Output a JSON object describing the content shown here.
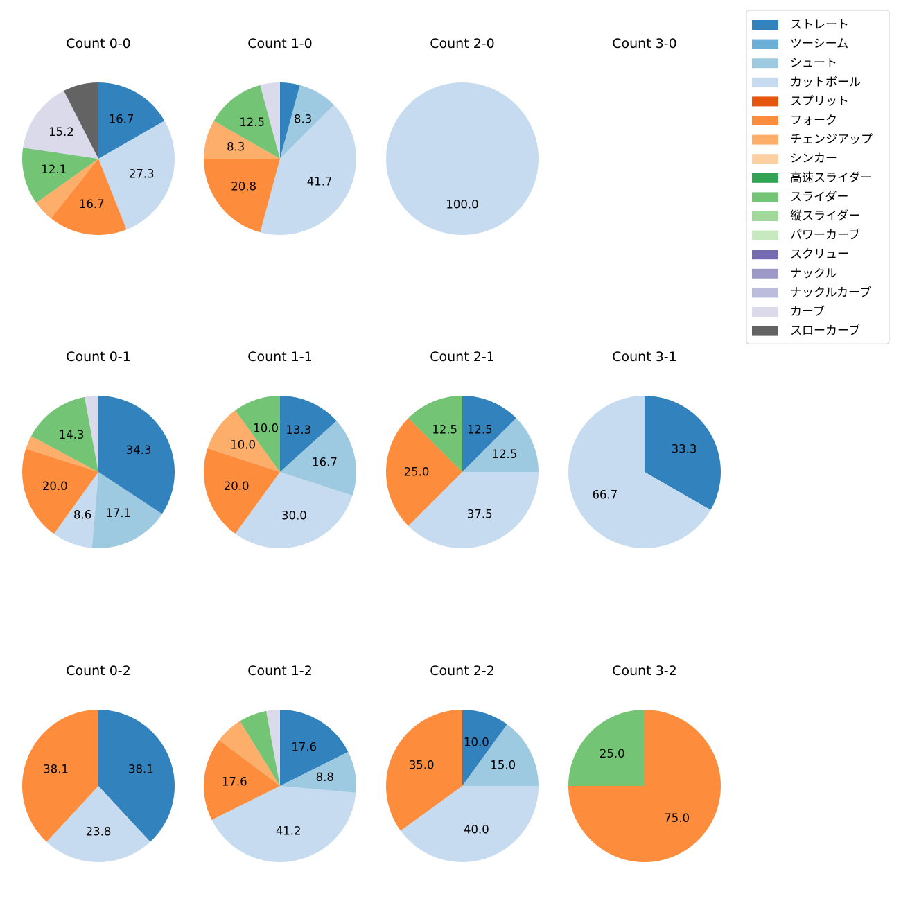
{
  "chart_data": {
    "type": "pie",
    "legend": {
      "placement": "top-right",
      "entries": [
        {
          "label": "ストレート",
          "color": "#3182bd"
        },
        {
          "label": "ツーシーム",
          "color": "#6baed6"
        },
        {
          "label": "シュート",
          "color": "#9ecae1"
        },
        {
          "label": "カットボール",
          "color": "#c6dbef"
        },
        {
          "label": "スプリット",
          "color": "#e6550d"
        },
        {
          "label": "フォーク",
          "color": "#fd8d3c"
        },
        {
          "label": "チェンジアップ",
          "color": "#fdae6b"
        },
        {
          "label": "シンカー",
          "color": "#fdd0a2"
        },
        {
          "label": "高速スライダー",
          "color": "#31a354"
        },
        {
          "label": "スライダー",
          "color": "#74c476"
        },
        {
          "label": "縦スライダー",
          "color": "#a1d99b"
        },
        {
          "label": "パワーカーブ",
          "color": "#c7e9c0"
        },
        {
          "label": "スクリュー",
          "color": "#756bb1"
        },
        {
          "label": "ナックル",
          "color": "#9e9ac8"
        },
        {
          "label": "ナックルカーブ",
          "color": "#bcbddc"
        },
        {
          "label": "カーブ",
          "color": "#dadaeb"
        },
        {
          "label": "スローカーブ",
          "color": "#636363"
        }
      ]
    },
    "pies": [
      {
        "title": "Count 0-0",
        "slices": [
          {
            "pitch": "ストレート",
            "value": 16.7,
            "label": "16.7"
          },
          {
            "pitch": "カットボール",
            "value": 27.3,
            "label": "27.3"
          },
          {
            "pitch": "フォーク",
            "value": 16.7,
            "label": "16.7"
          },
          {
            "pitch": "チェンジアップ",
            "value": 4.5,
            "label": ""
          },
          {
            "pitch": "スライダー",
            "value": 12.1,
            "label": "12.1"
          },
          {
            "pitch": "カーブ",
            "value": 15.2,
            "label": "15.2"
          },
          {
            "pitch": "スローカーブ",
            "value": 7.5,
            "label": ""
          }
        ]
      },
      {
        "title": "Count 1-0",
        "slices": [
          {
            "pitch": "ストレート",
            "value": 4.2,
            "label": ""
          },
          {
            "pitch": "シュート",
            "value": 8.3,
            "label": "8.3"
          },
          {
            "pitch": "カットボール",
            "value": 41.7,
            "label": "41.7"
          },
          {
            "pitch": "フォーク",
            "value": 20.8,
            "label": "20.8"
          },
          {
            "pitch": "チェンジアップ",
            "value": 8.3,
            "label": "8.3"
          },
          {
            "pitch": "スライダー",
            "value": 12.5,
            "label": "12.5"
          },
          {
            "pitch": "カーブ",
            "value": 4.2,
            "label": ""
          }
        ]
      },
      {
        "title": "Count 2-0",
        "slices": [
          {
            "pitch": "カットボール",
            "value": 100.0,
            "label": "100.0"
          }
        ]
      },
      {
        "title": "Count 3-0",
        "slices": []
      },
      {
        "title": "Count 0-1",
        "slices": [
          {
            "pitch": "ストレート",
            "value": 34.3,
            "label": "34.3"
          },
          {
            "pitch": "シュート",
            "value": 17.1,
            "label": "17.1"
          },
          {
            "pitch": "カットボール",
            "value": 8.6,
            "label": "8.6"
          },
          {
            "pitch": "フォーク",
            "value": 20.0,
            "label": "20.0"
          },
          {
            "pitch": "チェンジアップ",
            "value": 2.9,
            "label": ""
          },
          {
            "pitch": "スライダー",
            "value": 14.3,
            "label": "14.3"
          },
          {
            "pitch": "カーブ",
            "value": 2.9,
            "label": ""
          }
        ]
      },
      {
        "title": "Count 1-1",
        "slices": [
          {
            "pitch": "ストレート",
            "value": 13.3,
            "label": "13.3"
          },
          {
            "pitch": "シュート",
            "value": 16.7,
            "label": "16.7"
          },
          {
            "pitch": "カットボール",
            "value": 30.0,
            "label": "30.0"
          },
          {
            "pitch": "フォーク",
            "value": 20.0,
            "label": "20.0"
          },
          {
            "pitch": "チェンジアップ",
            "value": 10.0,
            "label": "10.0"
          },
          {
            "pitch": "スライダー",
            "value": 10.0,
            "label": "10.0"
          }
        ]
      },
      {
        "title": "Count 2-1",
        "slices": [
          {
            "pitch": "ストレート",
            "value": 12.5,
            "label": "12.5"
          },
          {
            "pitch": "シュート",
            "value": 12.5,
            "label": "12.5"
          },
          {
            "pitch": "カットボール",
            "value": 37.5,
            "label": "37.5"
          },
          {
            "pitch": "フォーク",
            "value": 25.0,
            "label": "25.0"
          },
          {
            "pitch": "スライダー",
            "value": 12.5,
            "label": "12.5"
          }
        ]
      },
      {
        "title": "Count 3-1",
        "slices": [
          {
            "pitch": "ストレート",
            "value": 33.3,
            "label": "33.3"
          },
          {
            "pitch": "カットボール",
            "value": 66.7,
            "label": "66.7"
          }
        ]
      },
      {
        "title": "Count 0-2",
        "slices": [
          {
            "pitch": "ストレート",
            "value": 38.1,
            "label": "38.1"
          },
          {
            "pitch": "カットボール",
            "value": 23.8,
            "label": "23.8"
          },
          {
            "pitch": "フォーク",
            "value": 38.1,
            "label": "38.1"
          }
        ]
      },
      {
        "title": "Count 1-2",
        "slices": [
          {
            "pitch": "ストレート",
            "value": 17.6,
            "label": "17.6"
          },
          {
            "pitch": "シュート",
            "value": 8.8,
            "label": "8.8"
          },
          {
            "pitch": "カットボール",
            "value": 41.2,
            "label": "41.2"
          },
          {
            "pitch": "フォーク",
            "value": 17.6,
            "label": "17.6"
          },
          {
            "pitch": "チェンジアップ",
            "value": 5.9,
            "label": ""
          },
          {
            "pitch": "スライダー",
            "value": 5.9,
            "label": ""
          },
          {
            "pitch": "カーブ",
            "value": 2.9,
            "label": ""
          }
        ]
      },
      {
        "title": "Count 2-2",
        "slices": [
          {
            "pitch": "ストレート",
            "value": 10.0,
            "label": "10.0"
          },
          {
            "pitch": "シュート",
            "value": 15.0,
            "label": "15.0"
          },
          {
            "pitch": "カットボール",
            "value": 40.0,
            "label": "40.0"
          },
          {
            "pitch": "フォーク",
            "value": 35.0,
            "label": "35.0"
          }
        ]
      },
      {
        "title": "Count 3-2",
        "slices": [
          {
            "pitch": "フォーク",
            "value": 75.0,
            "label": "75.0"
          },
          {
            "pitch": "スライダー",
            "value": 25.0,
            "label": "25.0"
          }
        ]
      }
    ]
  }
}
